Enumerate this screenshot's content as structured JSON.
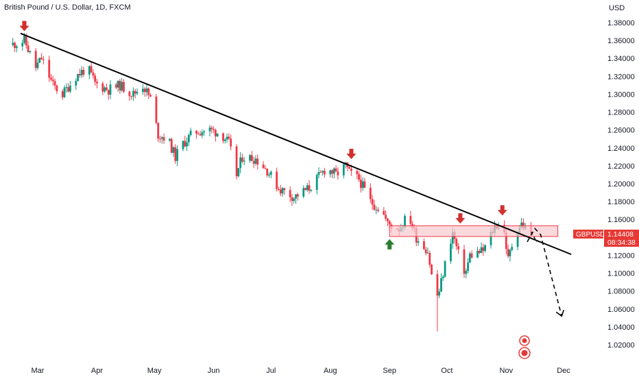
{
  "header": {
    "title": "British Pound / U.S. Dollar, 1D, FXCM"
  },
  "price_axis": {
    "unit": "USD"
  },
  "price_label": {
    "symbol": "GBPUSD",
    "price": "1.14408",
    "countdown": "08:34:38",
    "color": "#e53935"
  },
  "colors": {
    "up": "#089981",
    "down": "#f23645",
    "trendline": "#000000",
    "zone_fill": "#f8c9cf",
    "zone_border": "#f23645",
    "arrow_red": "#d32f2f",
    "arrow_green": "#2e7d32"
  },
  "chart_data": {
    "type": "candlestick",
    "title": "British Pound / U.S. Dollar, 1D, FXCM",
    "x_range": [
      "2022-02-16",
      "2022-12-05"
    ],
    "y_range": [
      1.01,
      1.39
    ],
    "y_ticks": [
      "1.38000",
      "1.36000",
      "1.34000",
      "1.32000",
      "1.30000",
      "1.28000",
      "1.26000",
      "1.24000",
      "1.22000",
      "1.20000",
      "1.18000",
      "1.16000",
      "1.14000",
      "1.12000",
      "1.10000",
      "1.08000",
      "1.06000",
      "1.04000",
      "1.02000"
    ],
    "x_ticks": [
      {
        "label": "Mar",
        "date": "2022-03-01"
      },
      {
        "label": "Apr",
        "date": "2022-04-01"
      },
      {
        "label": "May",
        "date": "2022-05-01"
      },
      {
        "label": "Jun",
        "date": "2022-06-01"
      },
      {
        "label": "Jul",
        "date": "2022-07-01"
      },
      {
        "label": "Aug",
        "date": "2022-08-01"
      },
      {
        "label": "Sep",
        "date": "2022-09-01"
      },
      {
        "label": "Oct",
        "date": "2022-10-01"
      },
      {
        "label": "Nov",
        "date": "2022-11-01"
      },
      {
        "label": "Dec",
        "date": "2022-12-01"
      }
    ],
    "path": [
      [
        "2022-02-16",
        1.355
      ],
      [
        "2022-02-23",
        1.36
      ],
      [
        "2022-03-01",
        1.33
      ],
      [
        "2022-03-04",
        1.34
      ],
      [
        "2022-03-10",
        1.31
      ],
      [
        "2022-03-15",
        1.3
      ],
      [
        "2022-03-22",
        1.32
      ],
      [
        "2022-03-28",
        1.33
      ],
      [
        "2022-04-01",
        1.312
      ],
      [
        "2022-04-08",
        1.305
      ],
      [
        "2022-04-14",
        1.31
      ],
      [
        "2022-04-21",
        1.3
      ],
      [
        "2022-04-26",
        1.31
      ],
      [
        "2022-04-30",
        1.295
      ],
      [
        "2022-05-04",
        1.255
      ],
      [
        "2022-05-09",
        1.25
      ],
      [
        "2022-05-13",
        1.23
      ],
      [
        "2022-05-17",
        1.245
      ],
      [
        "2022-05-23",
        1.258
      ],
      [
        "2022-05-31",
        1.26
      ],
      [
        "2022-06-06",
        1.256
      ],
      [
        "2022-06-10",
        1.245
      ],
      [
        "2022-06-14",
        1.21
      ],
      [
        "2022-06-17",
        1.23
      ],
      [
        "2022-06-24",
        1.228
      ],
      [
        "2022-06-30",
        1.215
      ],
      [
        "2022-07-06",
        1.195
      ],
      [
        "2022-07-14",
        1.185
      ],
      [
        "2022-07-22",
        1.195
      ],
      [
        "2022-07-31",
        1.218
      ],
      [
        "2022-08-05",
        1.21
      ],
      [
        "2022-08-10",
        1.22
      ],
      [
        "2022-08-12",
        1.212
      ],
      [
        "2022-08-17",
        1.205
      ],
      [
        "2022-08-23",
        1.18
      ],
      [
        "2022-08-29",
        1.17
      ],
      [
        "2022-09-01",
        1.155
      ],
      [
        "2022-09-07",
        1.15
      ],
      [
        "2022-09-12",
        1.165
      ],
      [
        "2022-09-16",
        1.14
      ],
      [
        "2022-09-22",
        1.125
      ],
      [
        "2022-09-26",
        1.07
      ],
      [
        "2022-09-28",
        1.08
      ],
      [
        "2022-10-03",
        1.13
      ],
      [
        "2022-10-05",
        1.145
      ],
      [
        "2022-10-10",
        1.105
      ],
      [
        "2022-10-12",
        1.102
      ],
      [
        "2022-10-14",
        1.12
      ],
      [
        "2022-10-21",
        1.125
      ],
      [
        "2022-10-27",
        1.152
      ],
      [
        "2022-10-31",
        1.16
      ],
      [
        "2022-11-03",
        1.115
      ],
      [
        "2022-11-07",
        1.148
      ],
      [
        "2022-11-10",
        1.155
      ],
      [
        "2022-11-14",
        1.144
      ]
    ],
    "trendline": {
      "from": [
        "2022-02-20",
        1.368
      ],
      "to": [
        "2022-12-05",
        1.121
      ]
    },
    "resistance_zone": {
      "from": "2022-09-01",
      "to": "2022-11-28",
      "top": 1.153,
      "bottom": 1.141
    },
    "projection": [
      [
        "2022-11-12",
        1.135
      ],
      [
        "2022-11-16",
        1.15
      ],
      [
        "2022-11-19",
        1.143
      ],
      [
        "2022-11-30",
        1.052
      ]
    ],
    "projection_short": [
      [
        "2022-11-14",
        1.146
      ],
      [
        "2022-11-17",
        1.135
      ]
    ],
    "down_arrows": [
      [
        "2022-02-22",
        1.372
      ],
      [
        "2022-08-12",
        1.229
      ],
      [
        "2022-10-08",
        1.157
      ],
      [
        "2022-10-30",
        1.166
      ]
    ],
    "up_arrows": [
      [
        "2022-09-01",
        1.138
      ]
    ],
    "last_price": 1.14408
  }
}
